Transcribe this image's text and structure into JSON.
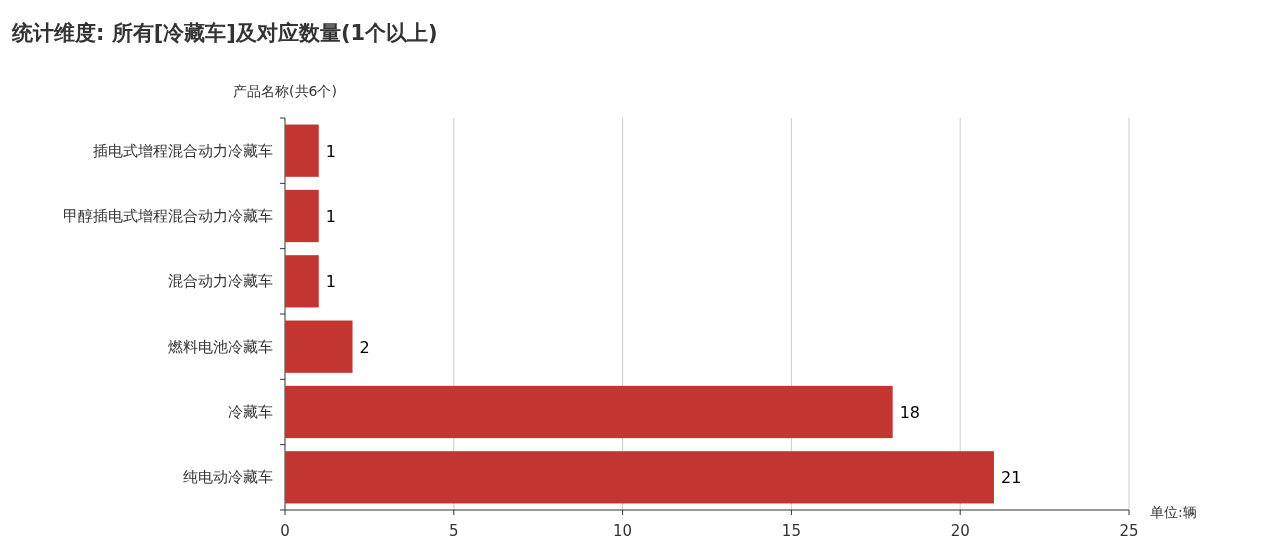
{
  "chart_data": {
    "type": "bar",
    "orientation": "horizontal",
    "title": "统计维度: 所有[冷藏车]及对应数量(1个以上)",
    "ylabel": "产品名称(共6个)",
    "xlabel": "单位:辆",
    "categories": [
      "插电式增程混合动力冷藏车",
      "甲醇插电式增程混合动力冷藏车",
      "混合动力冷藏车",
      "燃料电池冷藏车",
      "冷藏车",
      "纯电动冷藏车"
    ],
    "values": [
      1,
      1,
      1,
      2,
      18,
      21
    ],
    "color": "#c23531",
    "xlim": [
      0,
      25
    ],
    "xticks": [
      0,
      5,
      10,
      15,
      20,
      25
    ],
    "grid": "x",
    "data_labels": true
  }
}
